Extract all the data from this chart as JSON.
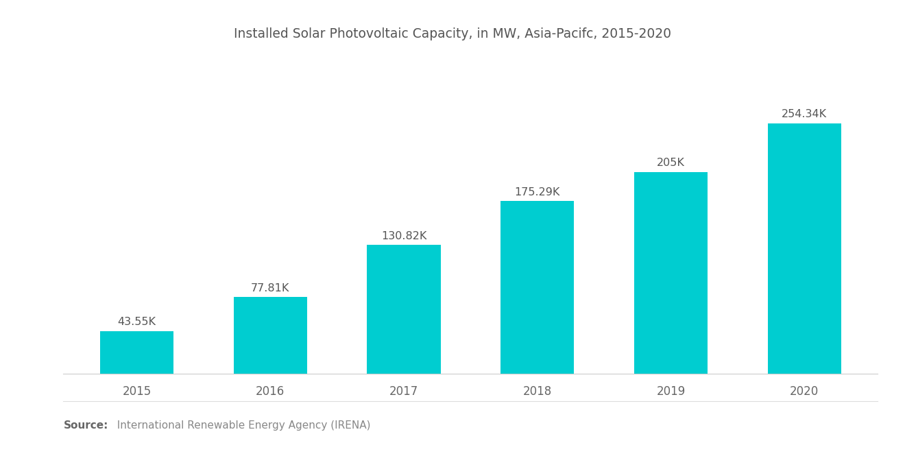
{
  "title": "Installed Solar Photovoltaic Capacity, in MW, Asia-Pacifc, 2015-2020",
  "categories": [
    "2015",
    "2016",
    "2017",
    "2018",
    "2019",
    "2020"
  ],
  "values": [
    43550,
    77810,
    130820,
    175290,
    205000,
    254340
  ],
  "labels": [
    "43.55K",
    "77.81K",
    "130.82K",
    "175.29K",
    "205K",
    "254.34K"
  ],
  "bar_color": "#00CDD0",
  "background_color": "#ffffff",
  "title_fontsize": 13.5,
  "label_fontsize": 11.5,
  "tick_fontsize": 12,
  "source_bold": "Source:",
  "source_text": "  International Renewable Energy Agency (IRENA)",
  "source_fontsize": 11,
  "ylim": [
    0,
    310000
  ]
}
